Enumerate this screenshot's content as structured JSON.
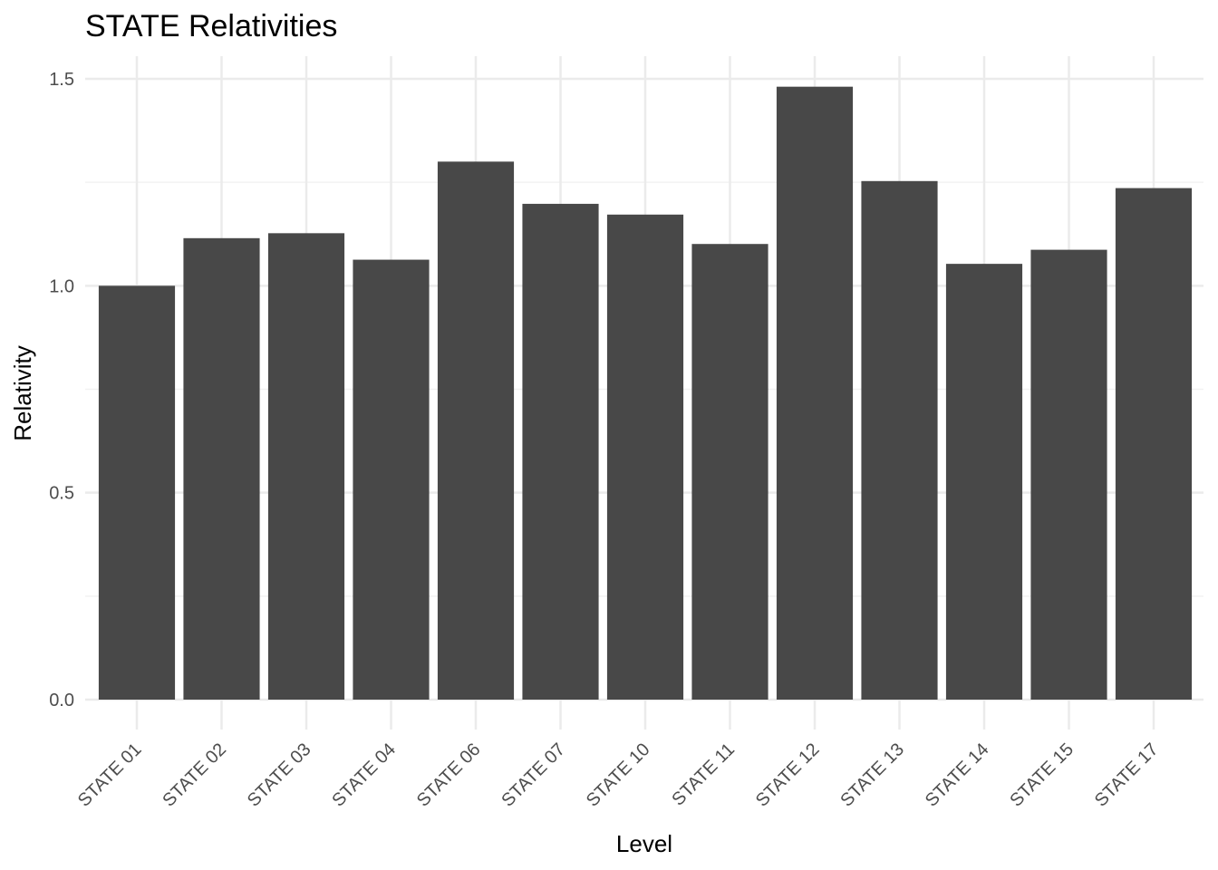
{
  "chart_data": {
    "type": "bar",
    "title": "STATE Relativities",
    "xlabel": "Level",
    "ylabel": "Relativity",
    "categories": [
      "STATE 01",
      "STATE 02",
      "STATE 03",
      "STATE 04",
      "STATE 06",
      "STATE 07",
      "STATE 10",
      "STATE 11",
      "STATE 12",
      "STATE 13",
      "STATE 14",
      "STATE 15",
      "STATE 17"
    ],
    "values": [
      1.0,
      1.115,
      1.127,
      1.063,
      1.3,
      1.198,
      1.172,
      1.101,
      1.481,
      1.253,
      1.053,
      1.087,
      1.236
    ],
    "ylim": [
      0,
      1.5
    ],
    "y_ticks": [
      "0.0",
      "0.5",
      "1.0",
      "1.5"
    ],
    "y_tick_values": [
      0,
      0.5,
      1.0,
      1.5
    ],
    "y_minor_tick_values": [
      0.25,
      0.75,
      1.25
    ],
    "grid": true,
    "legend": "none",
    "colors": {
      "bar": "#484848",
      "grid_major": "#ebebeb",
      "grid_minor": "#f2f2f2",
      "tick_label": "#4d4d4d"
    }
  }
}
